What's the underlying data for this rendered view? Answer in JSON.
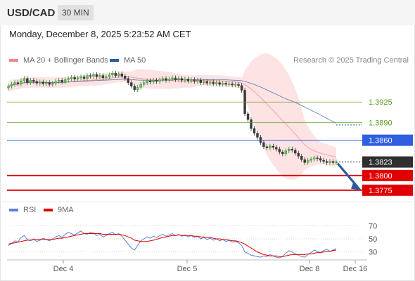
{
  "header": {
    "symbol": "USD/CAD",
    "timeframe": "30 MIN"
  },
  "datetime": "Monday, December 8, 2025 5:23:52 AM CET",
  "legend": {
    "ma20_label": "MA 20 + Bollinger Bands",
    "ma20_color": "#f08a8a",
    "ma50_label": "MA 50",
    "ma50_color": "#2c5aa0"
  },
  "copyright": "Research © 2025 Trading Central",
  "rsi_legend": {
    "rsi_label": "RSI",
    "rsi_color": "#5b7fd6",
    "ma9_label": "9MA",
    "ma9_color": "#e00000"
  },
  "chart_data": [
    {
      "type": "candlestick",
      "ylim": [
        1.3758,
        1.3985
      ],
      "x_ticks": [
        "Dec 4",
        "Dec 5",
        "Dec 8",
        "Dec 16"
      ],
      "current_price": 1.3823,
      "levels": [
        {
          "value": 1.3925,
          "label": "1.3925",
          "kind": "resistance",
          "color": "#6aa832"
        },
        {
          "value": 1.389,
          "label": "1.3890",
          "kind": "resistance",
          "color": "#6aa832"
        },
        {
          "value": 1.386,
          "label": "1.3860",
          "kind": "pivot",
          "color": "#2f5fe0"
        },
        {
          "value": 1.38,
          "label": "1.3800",
          "kind": "support",
          "color": "#e00000"
        },
        {
          "value": 1.3775,
          "label": "1.3775",
          "kind": "support",
          "color": "#e00000"
        }
      ],
      "closes": [
        1.3952,
        1.3955,
        1.3958,
        1.3956,
        1.3961,
        1.3965,
        1.3958,
        1.3962,
        1.396,
        1.3957,
        1.3959,
        1.3956,
        1.3958,
        1.3955,
        1.3957,
        1.396,
        1.3962,
        1.3959,
        1.3963,
        1.3965,
        1.3967,
        1.3964,
        1.3966,
        1.3968,
        1.3965,
        1.397,
        1.3969,
        1.3972,
        1.3968,
        1.397,
        1.3966,
        1.3968,
        1.3971,
        1.3974,
        1.397,
        1.3973,
        1.3969,
        1.3965,
        1.3958,
        1.3952,
        1.3946,
        1.395,
        1.3955,
        1.3958,
        1.3961,
        1.3959,
        1.3962,
        1.396,
        1.3963,
        1.3965,
        1.3962,
        1.3964,
        1.3966,
        1.3963,
        1.3965,
        1.3962,
        1.3964,
        1.3961,
        1.3963,
        1.396,
        1.3962,
        1.3958,
        1.396,
        1.3957,
        1.3959,
        1.3956,
        1.3958,
        1.3955,
        1.3957,
        1.3955,
        1.3956,
        1.3954,
        1.3955,
        1.3953,
        1.3945,
        1.3905,
        1.3895,
        1.388,
        1.3872,
        1.3865,
        1.3856,
        1.3849,
        1.3847,
        1.385,
        1.3848,
        1.3845,
        1.384,
        1.3837,
        1.3842,
        1.3845,
        1.3843,
        1.3838,
        1.3833,
        1.3827,
        1.3822,
        1.3826,
        1.3828,
        1.383,
        1.3829,
        1.3826,
        1.3824,
        1.3822,
        1.3824,
        1.3822,
        1.3823
      ],
      "ma50_end": 1.3886
    },
    {
      "type": "line",
      "title": "RSI",
      "ylim": [
        20,
        80
      ],
      "y_ticks": [
        70,
        50,
        30
      ],
      "series": [
        {
          "name": "RSI",
          "values": [
            40,
            43,
            47,
            45,
            52,
            55,
            49,
            47,
            50,
            46,
            48,
            51,
            49,
            47,
            50,
            53,
            55,
            52,
            57,
            60,
            58,
            56,
            59,
            62,
            58,
            57,
            60,
            59,
            55,
            57,
            53,
            55,
            58,
            60,
            56,
            58,
            54,
            48,
            42,
            36,
            33,
            40,
            47,
            50,
            53,
            51,
            54,
            52,
            55,
            57,
            54,
            56,
            58,
            55,
            57,
            54,
            56,
            53,
            55,
            52,
            54,
            50,
            52,
            49,
            51,
            48,
            50,
            47,
            49,
            46,
            48,
            45,
            46,
            44,
            40,
            30,
            28,
            25,
            24,
            23,
            22,
            24,
            23,
            26,
            24,
            22,
            21,
            23,
            28,
            32,
            30,
            27,
            25,
            23,
            22,
            26,
            29,
            33,
            31,
            29,
            32,
            34,
            31,
            33,
            35
          ]
        },
        {
          "name": "9MA",
          "values": [
            42,
            43,
            44,
            45,
            46,
            47,
            48,
            48,
            49,
            49,
            49,
            49,
            49,
            49,
            49,
            50,
            51,
            51,
            52,
            53,
            54,
            55,
            56,
            57,
            58,
            58,
            58,
            58,
            58,
            58,
            57,
            57,
            57,
            57,
            57,
            57,
            56,
            55,
            53,
            51,
            48,
            47,
            46,
            46,
            46,
            47,
            48,
            49,
            51,
            52,
            53,
            54,
            55,
            55,
            56,
            55,
            55,
            55,
            55,
            54,
            54,
            53,
            53,
            52,
            52,
            51,
            50,
            50,
            49,
            49,
            48,
            47,
            47,
            46,
            44,
            42,
            39,
            36,
            33,
            30,
            28,
            26,
            25,
            24,
            24,
            24,
            23,
            23,
            24,
            25,
            26,
            26,
            26,
            26,
            26,
            27,
            27,
            28,
            29,
            29,
            30,
            31,
            31,
            32,
            33
          ]
        }
      ]
    }
  ]
}
